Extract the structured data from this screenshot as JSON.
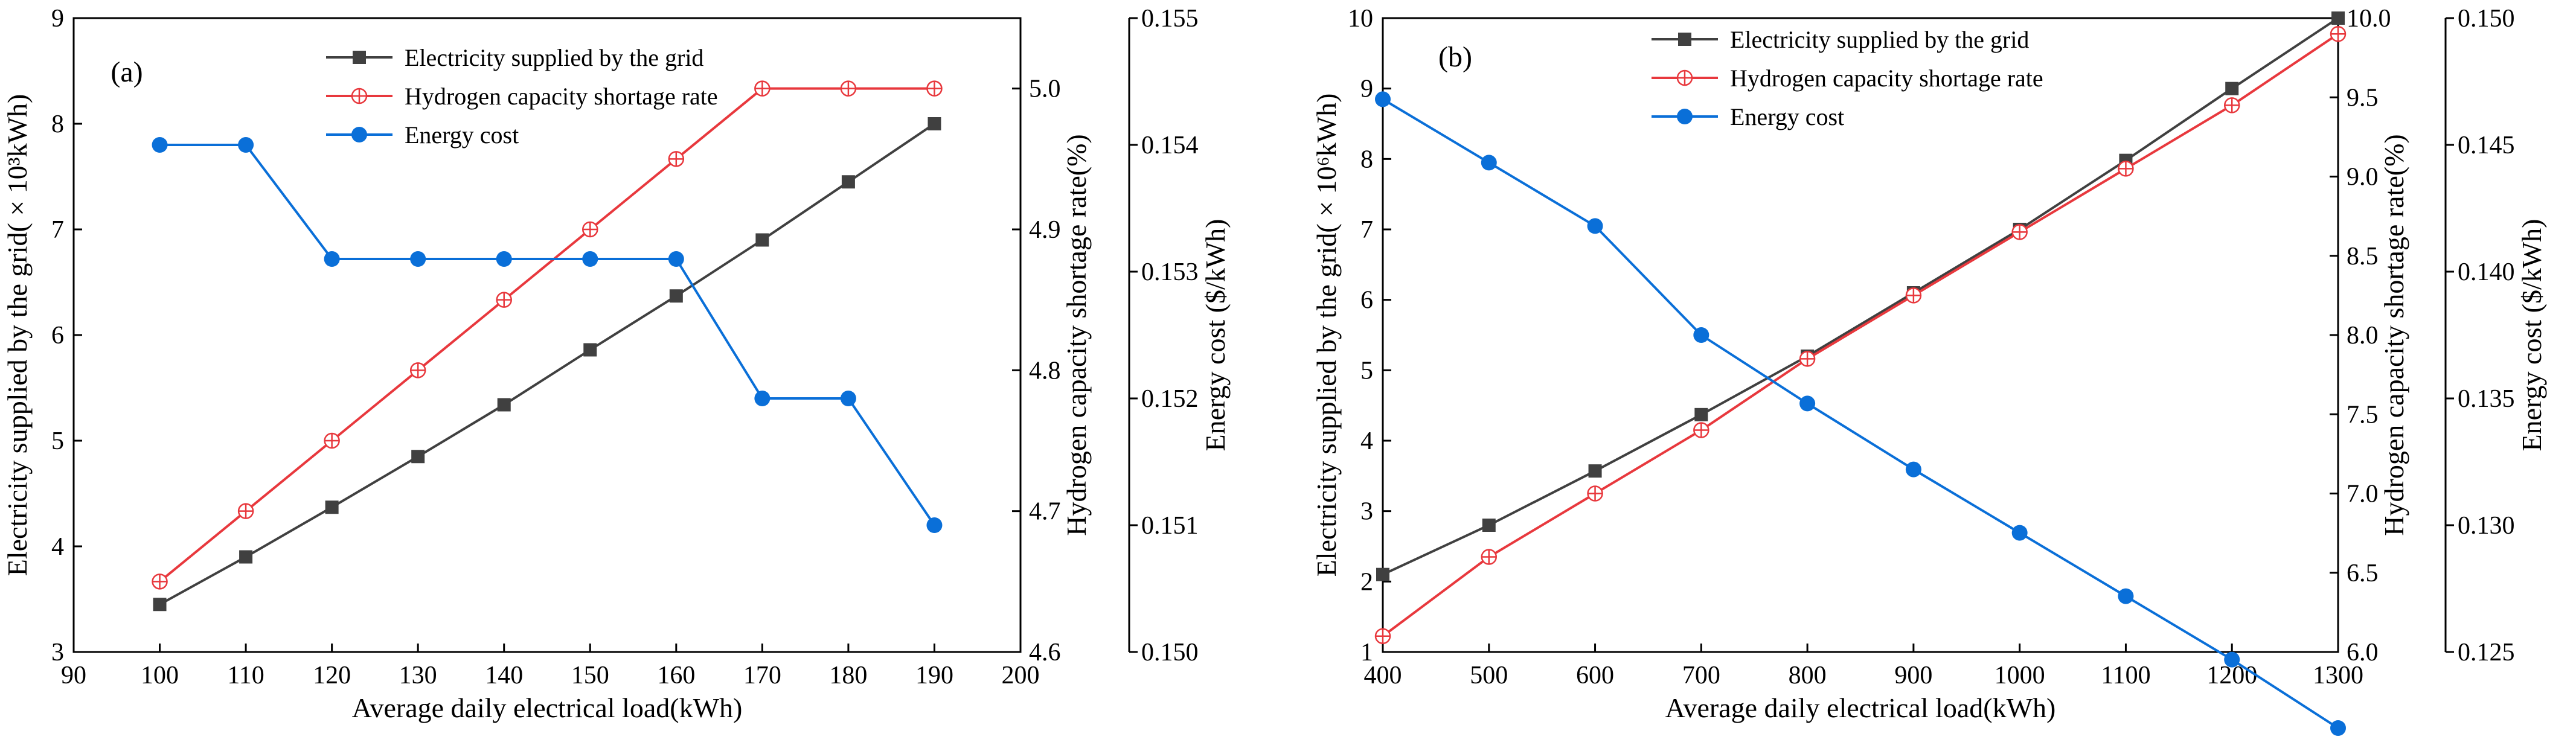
{
  "figure": {
    "colors": {
      "grid": "#404040",
      "hydrogen": "#e8383d",
      "cost": "#0a6fd8",
      "axis": "#000000"
    }
  },
  "chart_data": [
    {
      "type": "line",
      "panel_label": "(a)",
      "xlabel": "Average daily electrical load(kWh)",
      "ylabel_left": "Electricity supplied by the grid( × 10³kWh)",
      "ylabel_right1": "Hydrogen capacity shortage rate(%)",
      "ylabel_right2": "Energy cost ($/kWh)",
      "xlim": [
        90,
        200
      ],
      "xticks": [
        "90",
        "100",
        "110",
        "120",
        "130",
        "140",
        "150",
        "160",
        "170",
        "180",
        "190",
        "200"
      ],
      "y_left_lim": [
        3,
        9
      ],
      "y_left_ticks": [
        "3",
        "4",
        "5",
        "6",
        "7",
        "8",
        "9"
      ],
      "y_right1_lim": [
        4.6,
        5.05
      ],
      "y_right1_ticks": [
        "4.6",
        "4.7",
        "4.8",
        "4.9",
        "5.0"
      ],
      "y_right2_lim": [
        0.15,
        0.155
      ],
      "y_right2_ticks": [
        "0.150",
        "0.151",
        "0.152",
        "0.153",
        "0.154",
        "0.155"
      ],
      "x": [
        100,
        110,
        120,
        130,
        140,
        150,
        160,
        170,
        180,
        190
      ],
      "legend_position": "top-center",
      "series": [
        {
          "name": "Electricity supplied by the grid",
          "axis": "left",
          "marker": "square",
          "color": "#404040",
          "values": [
            3.45,
            3.9,
            4.37,
            4.85,
            5.34,
            5.86,
            6.37,
            6.9,
            7.45,
            8.0
          ]
        },
        {
          "name": "Hydrogen capacity shortage rate",
          "axis": "right1",
          "marker": "crossed-circle",
          "color": "#e8383d",
          "values": [
            4.65,
            4.7,
            4.75,
            4.8,
            4.85,
            4.9,
            4.95,
            5.0,
            5.0,
            5.0
          ]
        },
        {
          "name": "Energy cost",
          "axis": "right2",
          "marker": "filled-circle",
          "color": "#0a6fd8",
          "values": [
            0.154,
            0.154,
            0.1531,
            0.1531,
            0.1531,
            0.1531,
            0.1531,
            0.152,
            0.152,
            0.151
          ]
        }
      ]
    },
    {
      "type": "line",
      "panel_label": "(b)",
      "xlabel": "Average daily electrical load(kWh)",
      "ylabel_left": "Electricity supplied by the grid( × 10⁶kWh)",
      "ylabel_right1": "Hydrogen capacity shortage rate(%)",
      "ylabel_right2": "Energy cost ($/kWh)",
      "xlim": [
        400,
        1300
      ],
      "xticks": [
        "400",
        "500",
        "600",
        "700",
        "800",
        "900",
        "1000",
        "1100",
        "1200",
        "1300"
      ],
      "y_left_lim": [
        1,
        10
      ],
      "y_left_ticks": [
        "1",
        "2",
        "3",
        "4",
        "5",
        "6",
        "7",
        "8",
        "9",
        "10"
      ],
      "y_right1_lim": [
        6.0,
        10.0
      ],
      "y_right1_ticks": [
        "6.0",
        "6.5",
        "7.0",
        "7.5",
        "8.0",
        "8.5",
        "9.0",
        "9.5",
        "10.0"
      ],
      "y_right2_lim": [
        0.125,
        0.15
      ],
      "y_right2_ticks": [
        "0.125",
        "0.130",
        "0.135",
        "0.140",
        "0.145",
        "0.150"
      ],
      "x": [
        400,
        500,
        600,
        700,
        800,
        900,
        1000,
        1100,
        1200,
        1300
      ],
      "legend_position": "top-center",
      "series": [
        {
          "name": "Electricity supplied by the grid",
          "axis": "left",
          "marker": "square",
          "color": "#404040",
          "values": [
            2.1,
            2.8,
            3.57,
            4.37,
            5.2,
            6.1,
            7.0,
            7.98,
            9.0,
            10.0
          ]
        },
        {
          "name": "Hydrogen capacity shortage rate",
          "axis": "right1",
          "marker": "crossed-circle",
          "color": "#e8383d",
          "values": [
            6.1,
            6.6,
            7.0,
            7.4,
            7.85,
            8.25,
            8.65,
            9.05,
            9.45,
            9.9
          ]
        },
        {
          "name": "Energy cost",
          "axis": "right2",
          "marker": "filled-circle",
          "color": "#0a6fd8",
          "values": [
            0.1468,
            0.1443,
            0.1418,
            0.1375,
            0.1348,
            0.1322,
            0.1297,
            0.1272,
            0.1247,
            0.122
          ]
        }
      ]
    }
  ]
}
